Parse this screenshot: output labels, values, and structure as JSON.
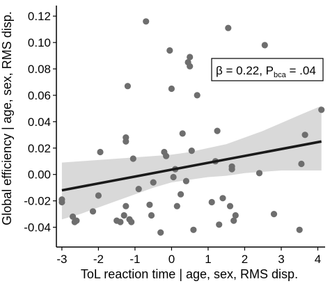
{
  "chart_data": {
    "type": "scatter",
    "xlabel": "ToL reaction time | age, sex, RMS disp.",
    "ylabel": "Global efficiency | age, sex, RMS disp.",
    "xlim": [
      -3.15,
      4.2
    ],
    "ylim": [
      -0.055,
      0.128
    ],
    "x_ticks": [
      -3,
      -2,
      -1,
      0,
      1,
      2,
      3,
      4
    ],
    "x_tick_labels": [
      "-3",
      "-2",
      "-1",
      "0",
      "1",
      "2",
      "3",
      "4"
    ],
    "y_ticks": [
      -0.04,
      -0.02,
      0.0,
      0.02,
      0.04,
      0.06,
      0.08,
      0.1,
      0.12
    ],
    "y_tick_labels": [
      "-0.04",
      "-0.02",
      "0.00",
      "0.02",
      "0.04",
      "0.06",
      "0.08",
      "0.10",
      "0.12"
    ],
    "grid": false,
    "colors": {
      "points": "#6e6e6e",
      "regression_line": "#1a1a1a",
      "confidence_band": "#d9d9d9",
      "axis": "#000000"
    },
    "annotation": {
      "beta_text": "β = 0.22, P",
      "p_subscript": "bca",
      "p_value_text": " = .04"
    },
    "regression_line": {
      "x": [
        -3,
        4.1
      ],
      "y": [
        -0.012,
        0.025
      ]
    },
    "confidence_band": {
      "x": [
        -3,
        -2.5,
        -2,
        -1.5,
        -1,
        -0.5,
        0,
        0.5,
        1,
        1.5,
        2,
        2.5,
        3,
        3.5,
        4.1
      ],
      "upper": [
        0.009,
        0.01,
        0.011,
        0.012,
        0.013,
        0.014,
        0.015,
        0.017,
        0.02,
        0.023,
        0.028,
        0.033,
        0.039,
        0.045,
        0.052
      ],
      "lower": [
        -0.034,
        -0.03,
        -0.025,
        -0.02,
        -0.015,
        -0.01,
        -0.006,
        -0.004,
        -0.002,
        -0.001,
        0.001,
        0.002,
        0.003,
        0.003,
        0.003
      ]
    },
    "points": [
      {
        "x": -3.0,
        "y": -0.021
      },
      {
        "x": -3.0,
        "y": -0.019
      },
      {
        "x": -2.7,
        "y": -0.032
      },
      {
        "x": -2.65,
        "y": -0.036
      },
      {
        "x": -2.6,
        "y": -0.035
      },
      {
        "x": -2.15,
        "y": -0.028
      },
      {
        "x": -2.0,
        "y": -0.016
      },
      {
        "x": -1.95,
        "y": 0.017
      },
      {
        "x": -1.5,
        "y": -0.035
      },
      {
        "x": -1.4,
        "y": -0.036
      },
      {
        "x": -1.3,
        "y": -0.031
      },
      {
        "x": -1.25,
        "y": -0.024
      },
      {
        "x": -1.25,
        "y": 0.025
      },
      {
        "x": -1.25,
        "y": 0.028
      },
      {
        "x": -1.2,
        "y": 0.067
      },
      {
        "x": -1.15,
        "y": -0.034
      },
      {
        "x": -1.1,
        "y": -0.036
      },
      {
        "x": -1.05,
        "y": 0.012
      },
      {
        "x": -0.9,
        "y": -0.011
      },
      {
        "x": -0.7,
        "y": 0.116
      },
      {
        "x": -0.6,
        "y": -0.023
      },
      {
        "x": -0.55,
        "y": -0.031
      },
      {
        "x": -0.5,
        "y": -0.006
      },
      {
        "x": -0.3,
        "y": -0.044
      },
      {
        "x": -0.2,
        "y": 0.017
      },
      {
        "x": -0.15,
        "y": 0.014
      },
      {
        "x": -0.05,
        "y": 0.094
      },
      {
        "x": 0.0,
        "y": 0.065
      },
      {
        "x": 0.05,
        "y": -0.002
      },
      {
        "x": 0.1,
        "y": 0.004
      },
      {
        "x": 0.15,
        "y": -0.024
      },
      {
        "x": 0.25,
        "y": -0.015
      },
      {
        "x": 0.3,
        "y": 0.031
      },
      {
        "x": 0.4,
        "y": -0.005
      },
      {
        "x": 0.45,
        "y": 0.085
      },
      {
        "x": 0.5,
        "y": 0.089
      },
      {
        "x": 0.5,
        "y": 0.082
      },
      {
        "x": 0.55,
        "y": 0.018
      },
      {
        "x": 0.6,
        "y": -0.042
      },
      {
        "x": 0.7,
        "y": 0.06
      },
      {
        "x": 1.1,
        "y": -0.021
      },
      {
        "x": 1.2,
        "y": 0.01
      },
      {
        "x": 1.25,
        "y": 0.033
      },
      {
        "x": 1.3,
        "y": -0.038
      },
      {
        "x": 1.4,
        "y": -0.018
      },
      {
        "x": 1.55,
        "y": 0.111
      },
      {
        "x": 1.6,
        "y": -0.024
      },
      {
        "x": 1.65,
        "y": 0.004
      },
      {
        "x": 1.65,
        "y": 0.006
      },
      {
        "x": 1.7,
        "y": -0.035
      },
      {
        "x": 1.75,
        "y": -0.031
      },
      {
        "x": 2.4,
        "y": 0.001
      },
      {
        "x": 2.55,
        "y": 0.098
      },
      {
        "x": 2.8,
        "y": -0.03
      },
      {
        "x": 3.5,
        "y": -0.042
      },
      {
        "x": 3.55,
        "y": 0.008
      },
      {
        "x": 3.65,
        "y": 0.03
      },
      {
        "x": 4.1,
        "y": 0.049
      }
    ]
  }
}
